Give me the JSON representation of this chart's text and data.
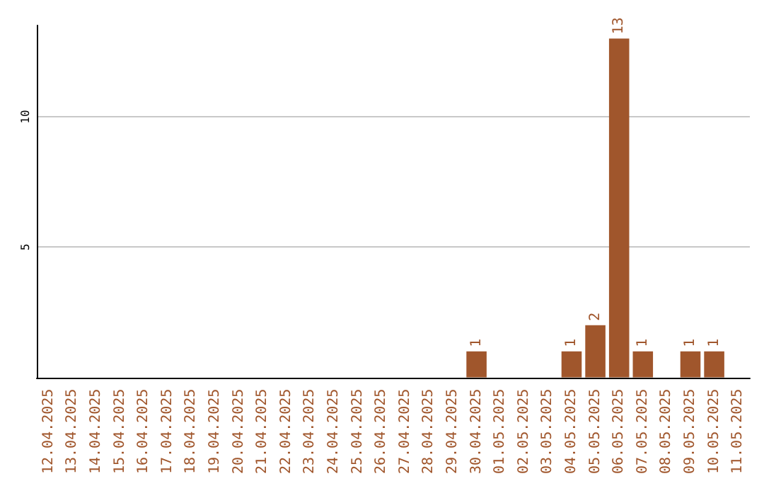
{
  "chart_data": {
    "type": "bar",
    "categories": [
      "12.04.2025",
      "13.04.2025",
      "14.04.2025",
      "15.04.2025",
      "16.04.2025",
      "17.04.2025",
      "18.04.2025",
      "19.04.2025",
      "20.04.2025",
      "21.04.2025",
      "22.04.2025",
      "23.04.2025",
      "24.04.2025",
      "25.04.2025",
      "26.04.2025",
      "27.04.2025",
      "28.04.2025",
      "29.04.2025",
      "30.04.2025",
      "01.05.2025",
      "02.05.2025",
      "03.05.2025",
      "04.05.2025",
      "05.05.2025",
      "06.05.2025",
      "07.05.2025",
      "08.05.2025",
      "09.05.2025",
      "10.05.2025",
      "11.05.2025"
    ],
    "values": [
      0,
      0,
      0,
      0,
      0,
      0,
      0,
      0,
      0,
      0,
      0,
      0,
      0,
      0,
      0,
      0,
      0,
      0,
      1,
      0,
      0,
      0,
      1,
      2,
      13,
      1,
      0,
      1,
      1,
      0
    ],
    "value_labels": [
      null,
      null,
      null,
      null,
      null,
      null,
      null,
      null,
      null,
      null,
      null,
      null,
      null,
      null,
      null,
      null,
      null,
      null,
      "1",
      null,
      null,
      null,
      "1",
      "2",
      "13",
      "1",
      null,
      "1",
      "1",
      null
    ],
    "color": "#a0562c",
    "ylim": [
      0,
      13.5
    ],
    "yticks": [
      5,
      10
    ],
    "grid": "y"
  }
}
